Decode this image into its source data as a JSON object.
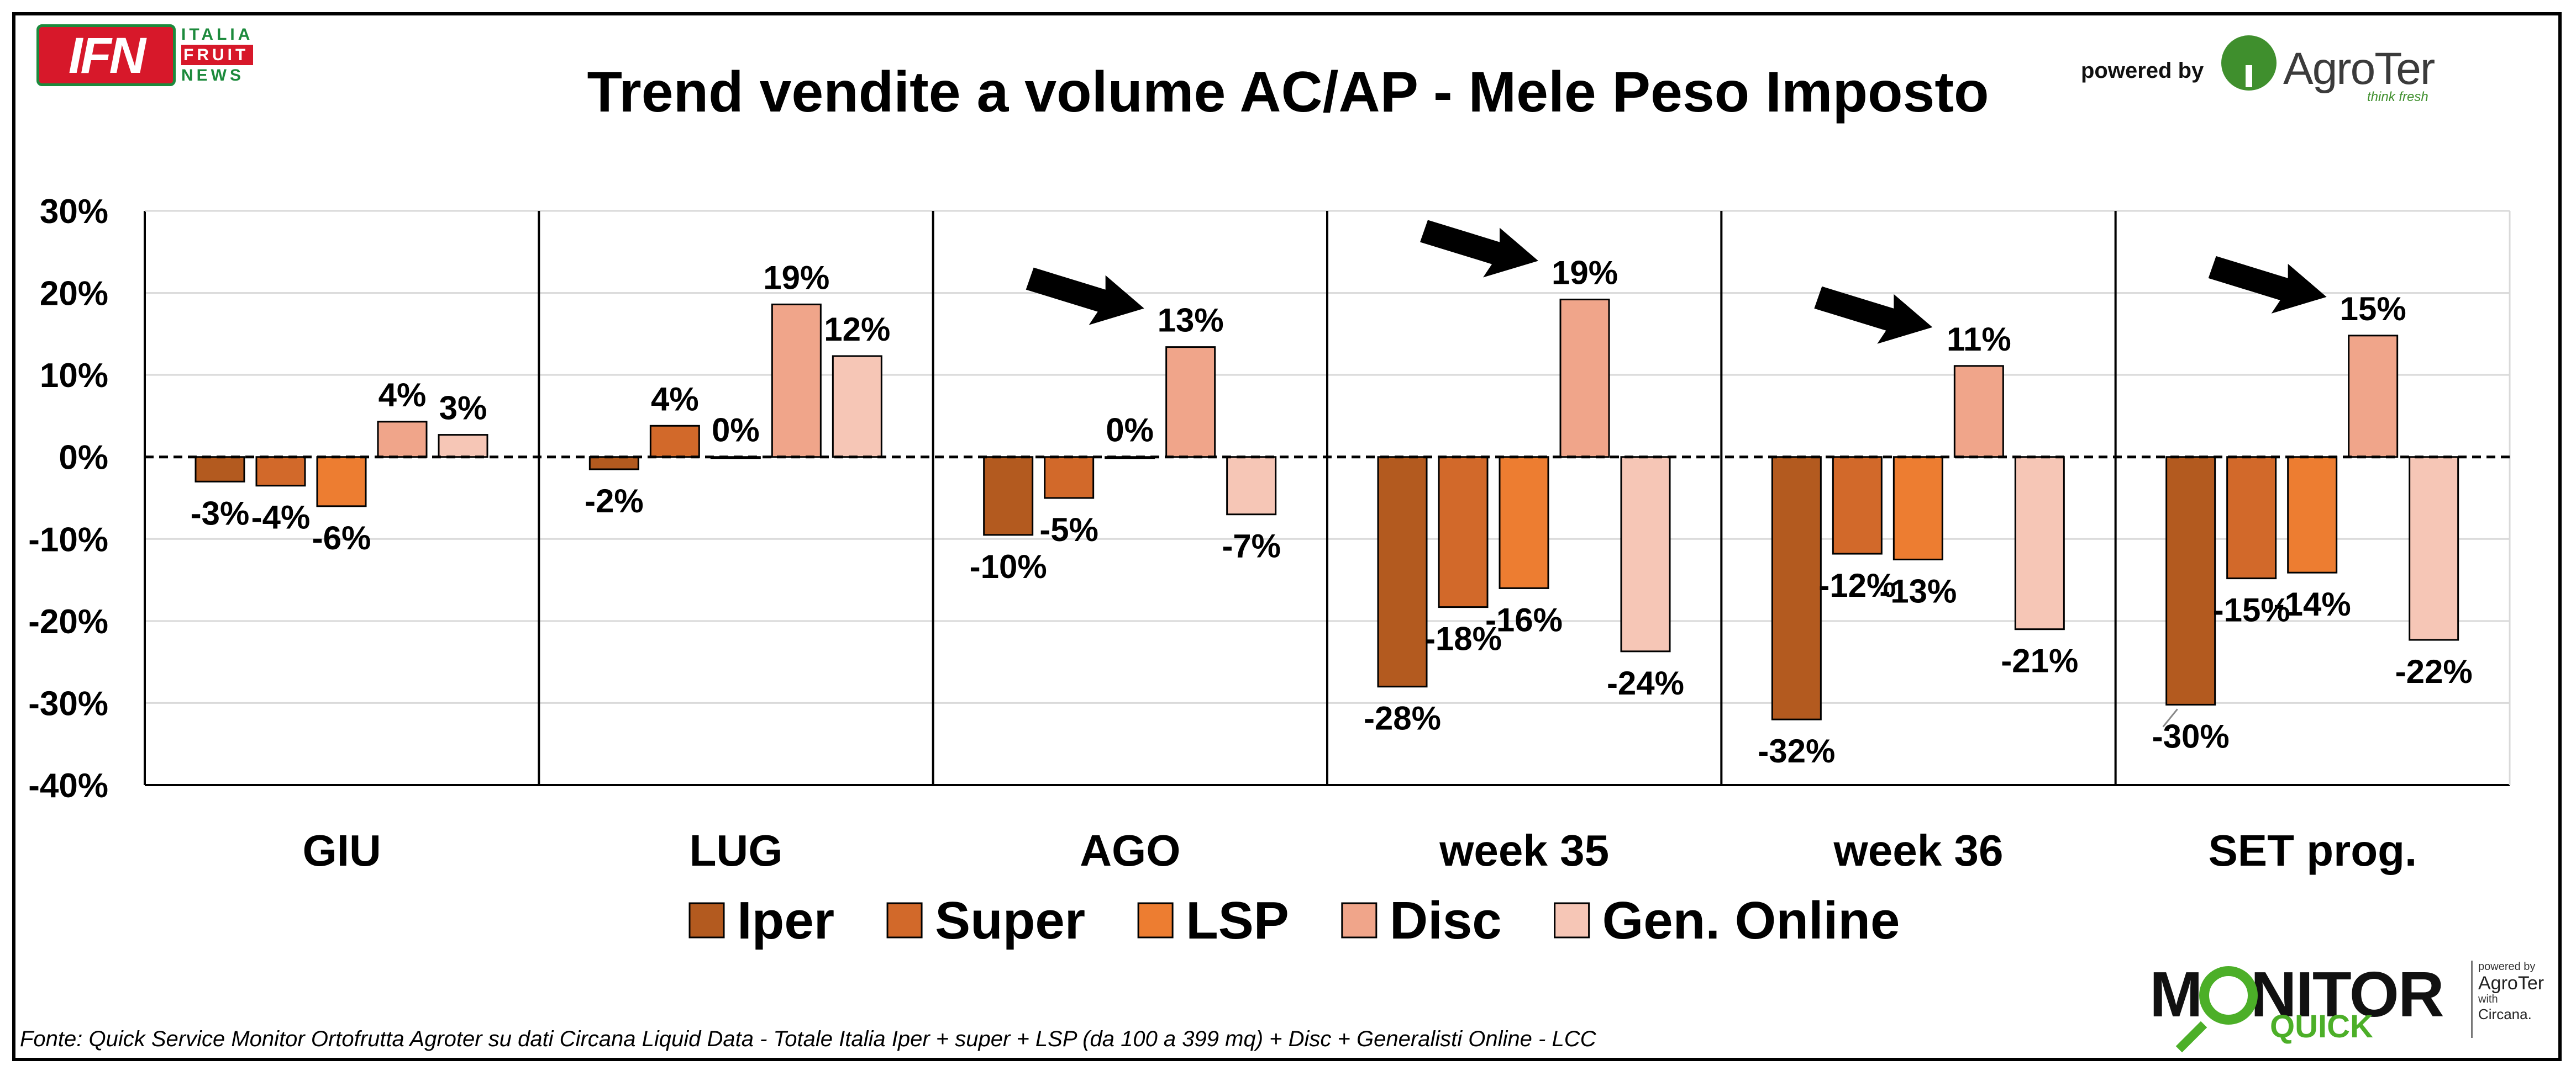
{
  "header": {
    "title": "Trend vendite a volume AC/AP - Mele Peso Imposto",
    "logo_left": {
      "main": "IFN",
      "line1": "ITALIA",
      "line2": "FRUIT",
      "line3": "NEWS"
    },
    "powered_by": "powered by",
    "logo_right": {
      "name": "AgroTer",
      "tagline": "think fresh"
    }
  },
  "footer": {
    "source": "Fonte: Quick Service Monitor Ortofrutta Agroter su dati Circana Liquid Data - Totale Italia Iper + super + LSP (da 100 a 399 mq) + Disc + Generalisti Online - LCC",
    "monitor_logo": {
      "word": "MONITOR",
      "sub": "QUICK",
      "side1": "powered by",
      "side2": "AgroTer",
      "side3": "with",
      "side4": "Circana."
    }
  },
  "chart_data": {
    "type": "bar",
    "categories": [
      "GIU",
      "LUG",
      "AGO",
      "week 35",
      "week 36",
      "SET prog."
    ],
    "series": [
      {
        "name": "Iper",
        "color": "#b35a1f",
        "values": [
          -3,
          -1.5,
          -9.5,
          -28,
          -32,
          -30.2
        ],
        "labels": [
          "-3%",
          "-2%",
          "-10%",
          "-28%",
          "-32%",
          "-30%"
        ]
      },
      {
        "name": "Super",
        "color": "#d2692a",
        "values": [
          -3.5,
          3.8,
          -5,
          -18.3,
          -11.8,
          -14.8
        ],
        "labels": [
          "-4%",
          "4%",
          "-5%",
          "-18%",
          "-12%",
          "-15%"
        ]
      },
      {
        "name": "LSP",
        "color": "#ed7d31",
        "values": [
          -6,
          0,
          0,
          -16,
          -12.5,
          -14.1
        ],
        "labels": [
          "-6%",
          "0%",
          "0%",
          "-16%",
          "-13%",
          "-14%"
        ]
      },
      {
        "name": "Disc",
        "color": "#f0a58a",
        "values": [
          4.3,
          18.6,
          13.4,
          19.2,
          11.1,
          14.8
        ],
        "labels": [
          "4%",
          "19%",
          "13%",
          "19%",
          "11%",
          "15%"
        ]
      },
      {
        "name": "Gen. Online",
        "color": "#f6c6b6",
        "values": [
          2.7,
          12.3,
          -7,
          -23.7,
          -21,
          -22.3
        ],
        "labels": [
          "3%",
          "12%",
          "-7%",
          "-24%",
          "-21%",
          "-22%"
        ]
      }
    ],
    "ylim": [
      -40,
      30
    ],
    "yticks": [
      30,
      20,
      10,
      0,
      -10,
      -20,
      -30,
      -40
    ],
    "ytick_labels": [
      "30%",
      "20%",
      "10%",
      "0%",
      "-10%",
      "-20%",
      "-30%",
      "-40%"
    ],
    "grid": true,
    "zero_line": "dashed",
    "legend": "bottom",
    "annotations": {
      "arrows_at": [
        "AGO",
        "week 35",
        "week 36",
        "SET prog."
      ],
      "arrow_points_to": "Disc"
    }
  }
}
